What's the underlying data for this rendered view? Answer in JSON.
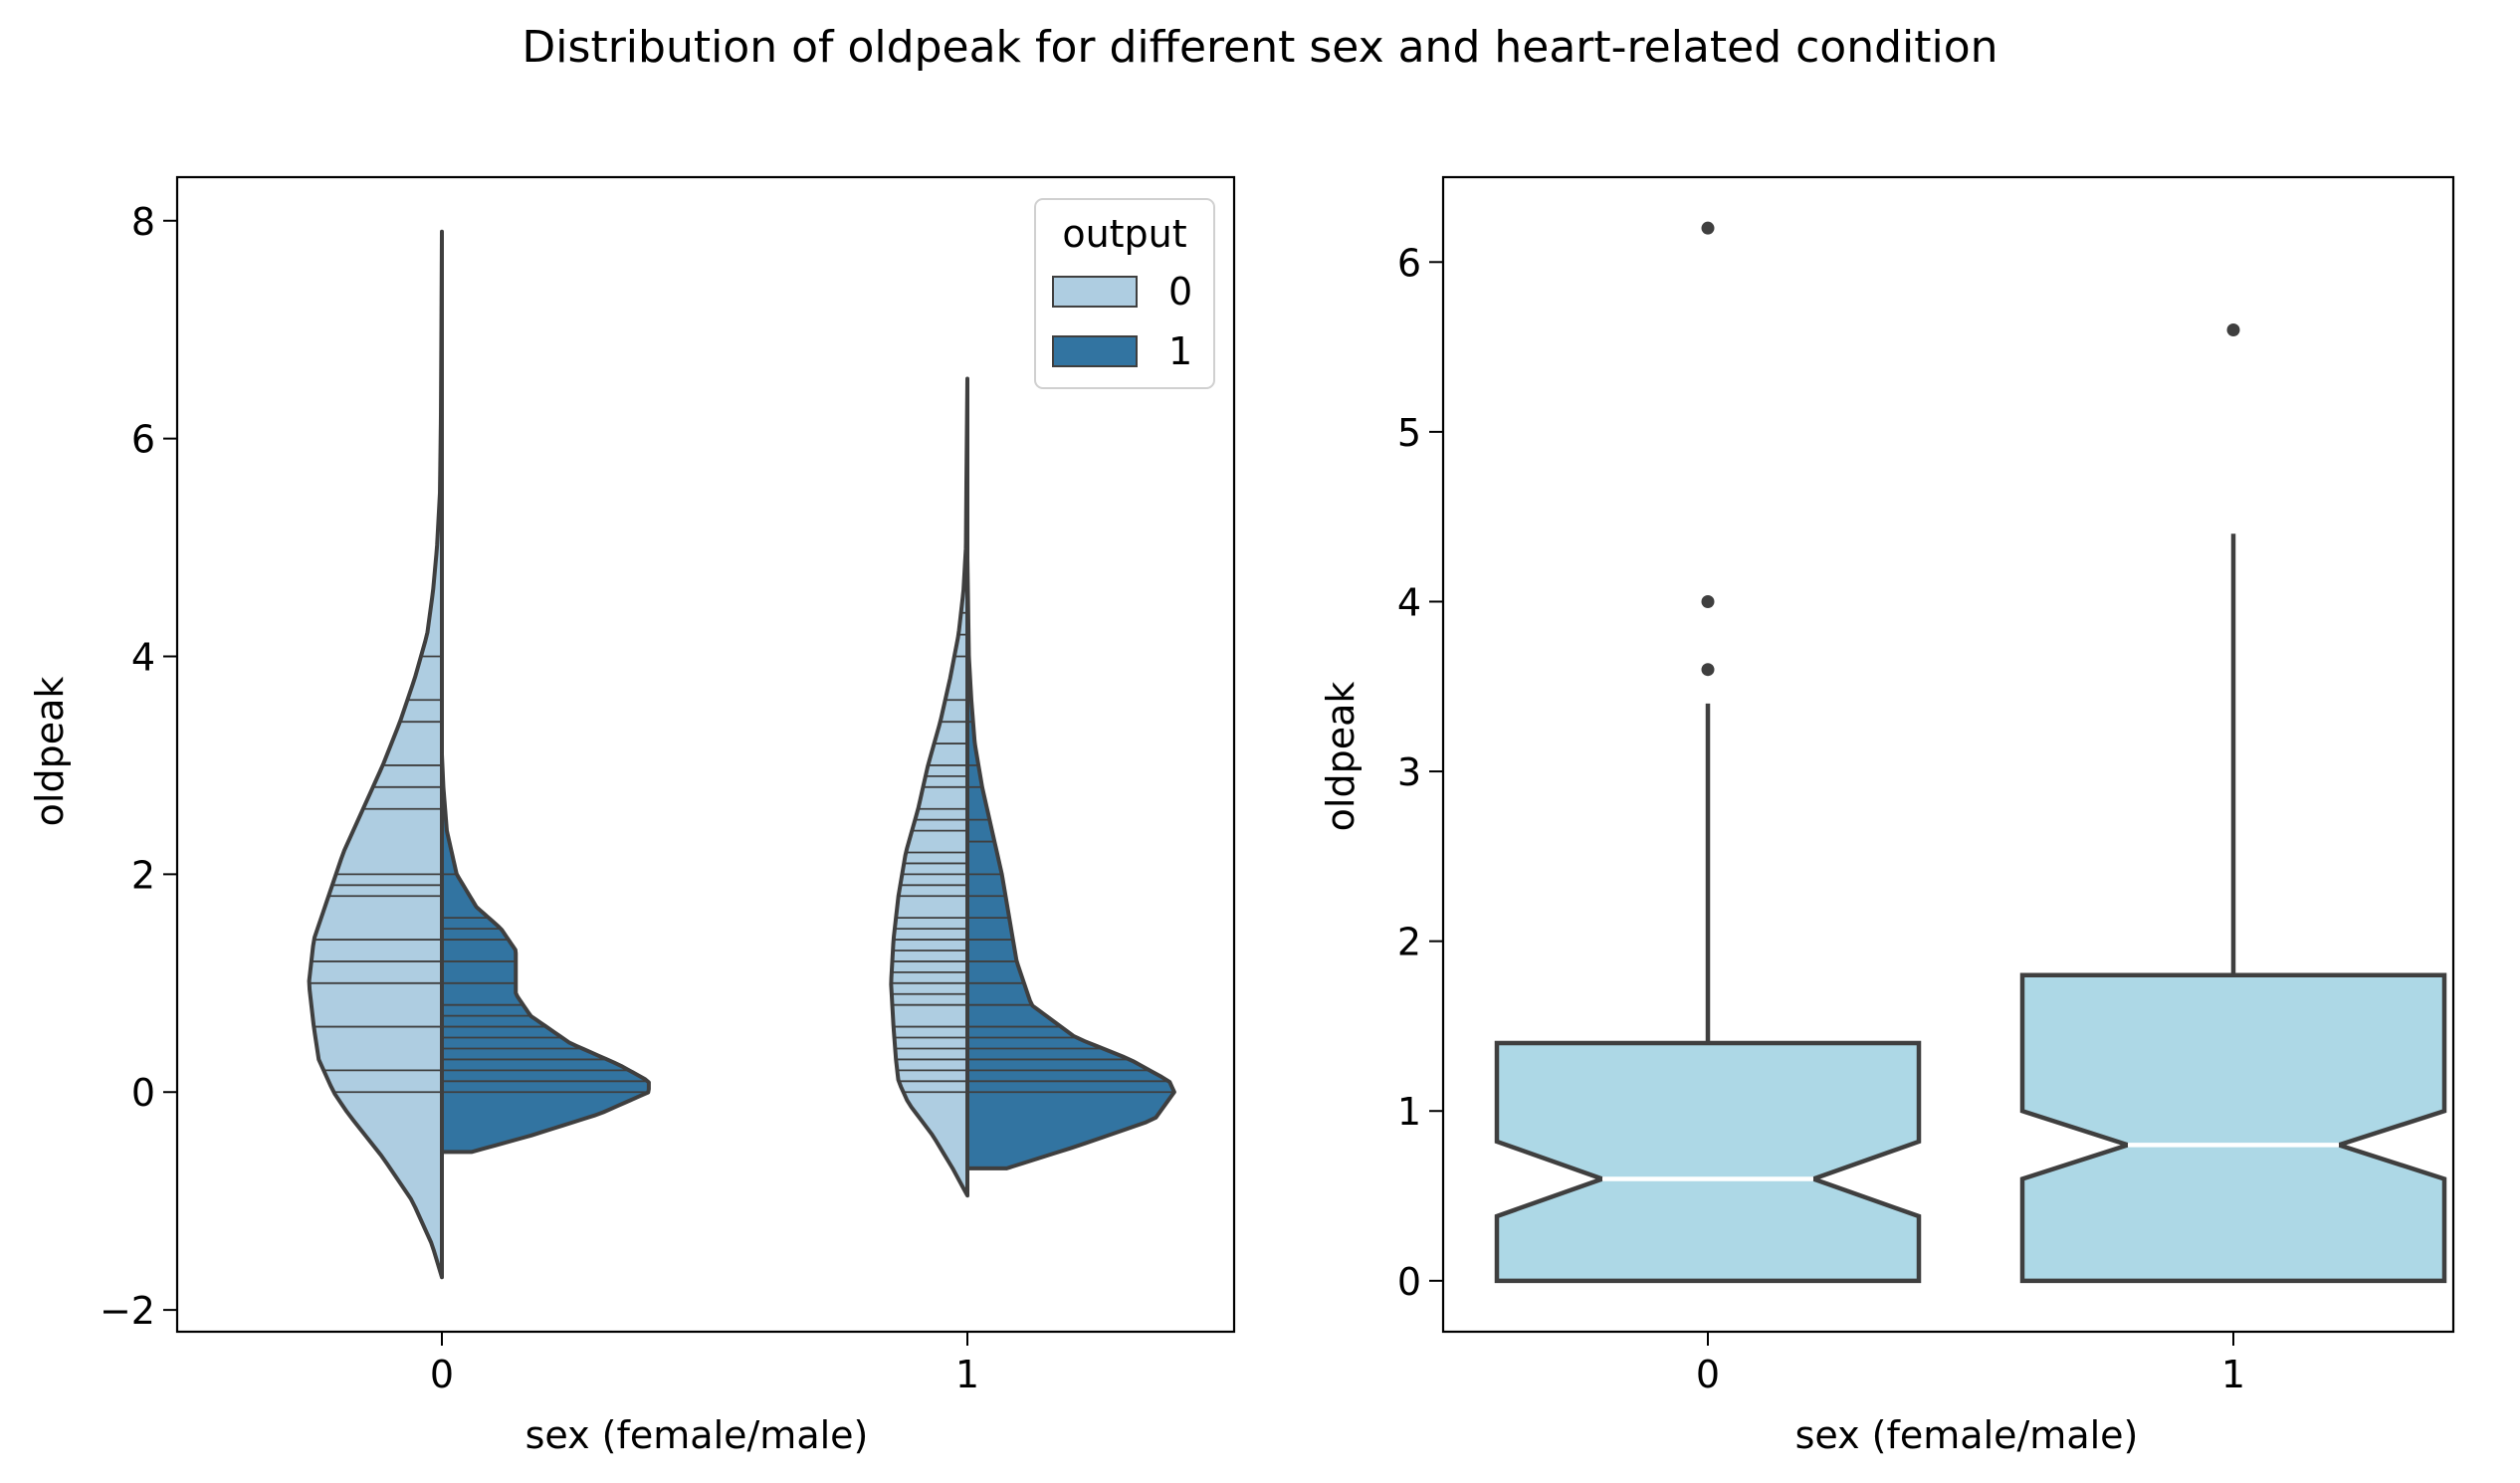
{
  "figure": {
    "title": "Distribution of oldpeak for different sex and heart-related condition"
  },
  "colors": {
    "light_blue": "#aecde1",
    "dark_blue": "#3274a1",
    "box_fill": "#add8e6",
    "edge": "#3f3f3f",
    "median": "#ffffff"
  },
  "chart_data": [
    {
      "type": "violin",
      "split": true,
      "inner": "stick",
      "xlabel": "sex (female/male)",
      "ylabel": "oldpeak",
      "categories": [
        "0",
        "1"
      ],
      "ylim": [
        -2.2,
        8.4
      ],
      "yticks": [
        -2,
        0,
        2,
        4,
        6,
        8
      ],
      "ytick_labels": [
        "−2",
        "0",
        "2",
        "4",
        "6",
        "8"
      ],
      "legend": {
        "title": "output",
        "entries": [
          "0",
          "1"
        ],
        "placement": "top-right"
      },
      "series": [
        {
          "name": "0",
          "side": "left",
          "groups": [
            {
              "category": "0",
              "range": [
                -1.7,
                7.9
              ],
              "density": [
                [
                  -1.7,
                  0.0
                ],
                [
                  -1.4,
                  0.02
                ],
                [
                  -1.0,
                  0.06
                ],
                [
                  -0.6,
                  0.12
                ],
                [
                  -0.2,
                  0.19
                ],
                [
                  0.0,
                  0.22
                ],
                [
                  0.3,
                  0.25
                ],
                [
                  0.6,
                  0.26
                ],
                [
                  1.0,
                  0.27
                ],
                [
                  1.4,
                  0.26
                ],
                [
                  1.8,
                  0.23
                ],
                [
                  2.2,
                  0.2
                ],
                [
                  2.6,
                  0.16
                ],
                [
                  3.0,
                  0.12
                ],
                [
                  3.4,
                  0.085
                ],
                [
                  3.8,
                  0.055
                ],
                [
                  4.2,
                  0.03
                ],
                [
                  4.6,
                  0.018
                ],
                [
                  5.0,
                  0.01
                ],
                [
                  5.5,
                  0.004
                ],
                [
                  6.2,
                  0.002
                ],
                [
                  7.0,
                  0.001
                ],
                [
                  7.9,
                  0.0
                ]
              ],
              "sticks": [
                0.0,
                0.2,
                0.6,
                1.0,
                1.2,
                1.4,
                1.8,
                1.9,
                2.0,
                2.6,
                2.8,
                3.0,
                3.4,
                3.6,
                4.0,
                6.2
              ]
            },
            {
              "category": "1",
              "range": [
                -0.95,
                6.55
              ],
              "density": [
                [
                  -0.95,
                  0.0
                ],
                [
                  -0.7,
                  0.03
                ],
                [
                  -0.4,
                  0.07
                ],
                [
                  -0.1,
                  0.12
                ],
                [
                  0.1,
                  0.14
                ],
                [
                  0.3,
                  0.145
                ],
                [
                  0.6,
                  0.15
                ],
                [
                  1.0,
                  0.155
                ],
                [
                  1.4,
                  0.15
                ],
                [
                  1.8,
                  0.14
                ],
                [
                  2.2,
                  0.125
                ],
                [
                  2.6,
                  0.1
                ],
                [
                  3.0,
                  0.08
                ],
                [
                  3.4,
                  0.055
                ],
                [
                  3.8,
                  0.035
                ],
                [
                  4.2,
                  0.018
                ],
                [
                  4.6,
                  0.008
                ],
                [
                  5.0,
                  0.003
                ],
                [
                  5.6,
                  0.002
                ],
                [
                  6.55,
                  0.0
                ]
              ],
              "sticks": [
                0.0,
                0.1,
                0.2,
                0.3,
                0.4,
                0.5,
                0.6,
                0.8,
                0.9,
                1.0,
                1.1,
                1.2,
                1.3,
                1.4,
                1.5,
                1.6,
                1.8,
                1.9,
                2.0,
                2.1,
                2.2,
                2.4,
                2.5,
                2.6,
                2.8,
                2.9,
                3.0,
                3.2,
                3.4,
                3.6,
                4.0,
                4.2,
                4.4,
                5.6
              ]
            }
          ]
        },
        {
          "name": "1",
          "side": "right",
          "groups": [
            {
              "category": "0",
              "range": [
                -0.55,
                3.1
              ],
              "density": [
                [
                  -0.55,
                  0.06
                ],
                [
                  -0.4,
                  0.18
                ],
                [
                  -0.2,
                  0.32
                ],
                [
                  0.0,
                  0.42
                ],
                [
                  0.1,
                  0.42
                ],
                [
                  0.25,
                  0.36
                ],
                [
                  0.45,
                  0.26
                ],
                [
                  0.7,
                  0.18
                ],
                [
                  0.9,
                  0.15
                ],
                [
                  1.1,
                  0.15
                ],
                [
                  1.3,
                  0.15
                ],
                [
                  1.5,
                  0.12
                ],
                [
                  1.7,
                  0.07
                ],
                [
                  2.0,
                  0.03
                ],
                [
                  2.4,
                  0.01
                ],
                [
                  2.8,
                  0.003
                ],
                [
                  3.1,
                  0.0
                ]
              ],
              "sticks": [
                0.0,
                0.1,
                0.2,
                0.3,
                0.4,
                0.5,
                0.6,
                0.7,
                0.8,
                1.0,
                1.2,
                1.4,
                1.5,
                1.6,
                2.0
              ]
            },
            {
              "category": "1",
              "range": [
                -0.7,
                4.9
              ],
              "density": [
                [
                  -0.7,
                  0.08
                ],
                [
                  -0.5,
                  0.22
                ],
                [
                  -0.25,
                  0.38
                ],
                [
                  0.0,
                  0.42
                ],
                [
                  0.1,
                  0.41
                ],
                [
                  0.3,
                  0.33
                ],
                [
                  0.5,
                  0.22
                ],
                [
                  0.8,
                  0.13
                ],
                [
                  1.2,
                  0.1
                ],
                [
                  1.6,
                  0.085
                ],
                [
                  2.0,
                  0.07
                ],
                [
                  2.4,
                  0.05
                ],
                [
                  2.8,
                  0.03
                ],
                [
                  3.2,
                  0.015
                ],
                [
                  3.6,
                  0.008
                ],
                [
                  4.0,
                  0.003
                ],
                [
                  4.9,
                  0.0
                ]
              ],
              "sticks": [
                0.0,
                0.1,
                0.2,
                0.3,
                0.4,
                0.5,
                0.6,
                0.8,
                1.0,
                1.2,
                1.4,
                1.6,
                1.8,
                2.0,
                2.3,
                2.5,
                2.8,
                3.0,
                3.4,
                4.0
              ]
            }
          ]
        }
      ]
    },
    {
      "type": "box",
      "notch": true,
      "xlabel": "sex (female/male)",
      "ylabel": "oldpeak",
      "categories": [
        "0",
        "1"
      ],
      "ylim": [
        -0.3,
        6.5
      ],
      "yticks": [
        0,
        1,
        2,
        3,
        4,
        5,
        6
      ],
      "ytick_labels": [
        "0",
        "1",
        "2",
        "3",
        "4",
        "5",
        "6"
      ],
      "boxes": [
        {
          "category": "0",
          "whisker_low": 0.0,
          "q1": 0.0,
          "median": 0.6,
          "q3": 1.4,
          "whisker_high": 3.4,
          "notch_low": 0.38,
          "notch_high": 0.82,
          "outliers": [
            3.6,
            4.0,
            6.2
          ]
        },
        {
          "category": "1",
          "whisker_low": 0.0,
          "q1": 0.0,
          "median": 0.8,
          "q3": 1.8,
          "whisker_high": 4.4,
          "notch_low": 0.6,
          "notch_high": 1.0,
          "outliers": [
            5.6
          ]
        }
      ]
    }
  ]
}
